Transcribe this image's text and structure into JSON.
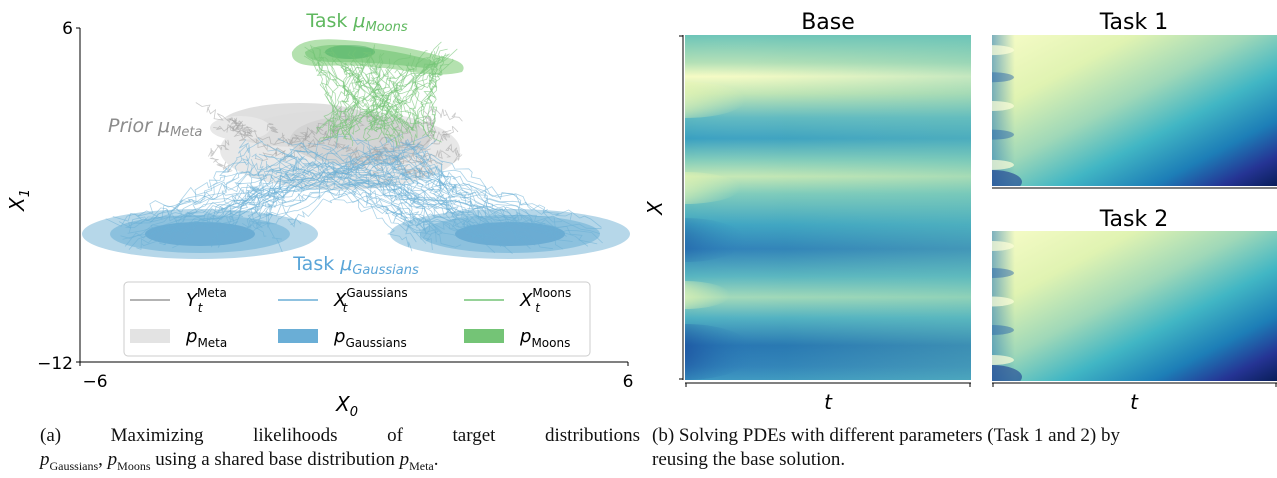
{
  "figure_a": {
    "axis": {
      "y_top": "6",
      "y_bottom": "−12",
      "x_left": "−6",
      "x_right": "6",
      "xlabel": "X",
      "xlabel_sub": "0",
      "ylabel": "X",
      "ylabel_sub": "1"
    },
    "annotations": {
      "moons": {
        "prefix": "Task ",
        "mu": "μ",
        "sub": "Moons"
      },
      "prior": {
        "prefix": "Prior ",
        "mu": "μ",
        "sub": "Meta"
      },
      "gaussians": {
        "prefix": "Task ",
        "mu": "μ",
        "sub": "Gaussians"
      }
    },
    "legend": [
      {
        "kind": "line",
        "sym": "Y",
        "sup": "Meta",
        "sub": "t",
        "color": "#9a9a9a"
      },
      {
        "kind": "line",
        "sym": "X",
        "sup": "Gaussians",
        "sub": "t",
        "color": "#6aaed6"
      },
      {
        "kind": "line",
        "sym": "X",
        "sup": "Moons",
        "sub": "t",
        "color": "#74c476"
      },
      {
        "kind": "patch",
        "sym": "p",
        "sub": "Meta",
        "color": "#e3e3e3"
      },
      {
        "kind": "patch",
        "sym": "p",
        "sub": "Gaussians",
        "color": "#6aaed6"
      },
      {
        "kind": "patch",
        "sym": "p",
        "sub": "Moons",
        "color": "#74c476"
      }
    ],
    "colors": {
      "meta": "#a0a0a0",
      "gaussians": "#6aaed6",
      "moons": "#74c476",
      "moons_text": "#5fb85f",
      "gauss_text": "#5aa5d8",
      "prior_text": "#8c8c8c"
    }
  },
  "figure_b": {
    "panels": [
      {
        "title": "Base"
      },
      {
        "title": "Task 1"
      },
      {
        "title": "Task 2"
      }
    ],
    "ylabel": "X",
    "xlabel": "t",
    "colormap": "YlGnBu"
  },
  "captions": {
    "a_line1_words": [
      "(a)",
      "Maximizing",
      "likelihoods",
      "of",
      "target",
      "distributions"
    ],
    "a_line2": {
      "p1": "p",
      "s1": "Gaussians",
      "sep": ", ",
      "p2": "p",
      "s2": "Moons",
      "mid": " using a shared base distribution ",
      "p3": "p",
      "s3": "Meta",
      "end": "."
    },
    "b_line1": "(b) Solving PDEs with different parameters (Task 1 and 2) by",
    "b_line2": "reusing the base solution."
  }
}
